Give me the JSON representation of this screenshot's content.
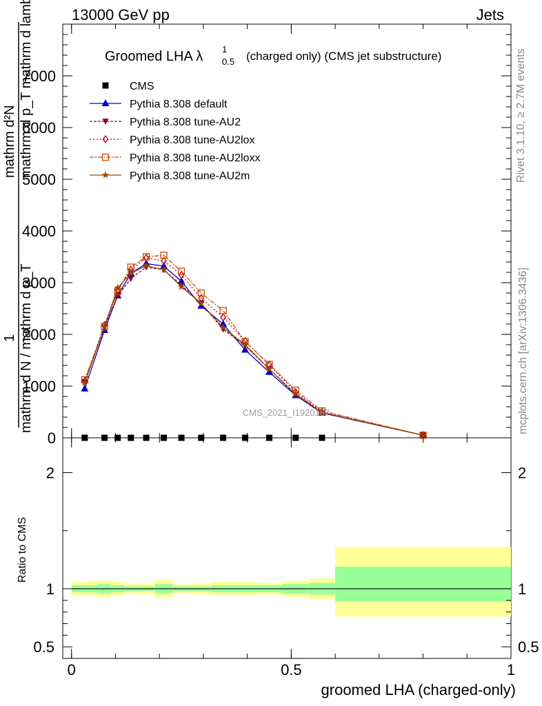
{
  "header": {
    "left": "13000 GeV pp",
    "right": "Jets"
  },
  "side": {
    "rivet": "Rivet 3.1.10, ≥ 2.7M events",
    "mcplots": "mcplots.cern.ch [arXiv:1306.3436]"
  },
  "title": {
    "main": "Groomed LHA λ",
    "sup": "1",
    "sub": "0.5",
    "rest": "(charged only) (CMS jet substructure)"
  },
  "watermark": "CMS_2021_I1920187",
  "ylabel": {
    "numerator": "mathrm d²N",
    "numerator_bottom": "mathrm d p_T mathrm d lambda",
    "prefix": "1",
    "denominator": "mathrm d N / mathrm d p_T"
  },
  "ratio_label": "Ratio to CMS",
  "xlabel": "groomed LHA (charged-only)",
  "colors": {
    "cms": "#000000",
    "default": "#0000cc",
    "au2": "#880033",
    "au2lox": "#aa0022",
    "au2loxx": "#cc4400",
    "au2m": "#994400",
    "band_inner": "#99ff99",
    "band_outer": "#ffff99"
  },
  "chart_data": [
    {
      "type": "line",
      "ylim": [
        0,
        8000
      ],
      "xlim": [
        -0.02,
        1.0
      ],
      "yticks": [
        {
          "v": 0,
          "label": "0"
        },
        {
          "v": 1000,
          "label": "1000"
        },
        {
          "v": 2000,
          "label": "2000"
        },
        {
          "v": 3000,
          "label": "3000"
        },
        {
          "v": 4000,
          "label": "4000"
        },
        {
          "v": 5000,
          "label": "5000"
        },
        {
          "v": 6000,
          "label": "6000"
        },
        {
          "v": 7000,
          "label": "7000"
        }
      ],
      "x": [
        0.03,
        0.075,
        0.105,
        0.135,
        0.17,
        0.21,
        0.25,
        0.295,
        0.345,
        0.395,
        0.45,
        0.51,
        0.57,
        0.8
      ],
      "series": [
        {
          "name": "CMS",
          "key": "cms",
          "marker": "square",
          "dash": "",
          "values": [
            0,
            0,
            0,
            0,
            0,
            0,
            0,
            0,
            0,
            0,
            0,
            0,
            0,
            null
          ]
        },
        {
          "name": "Pythia 8.308 default",
          "key": "default",
          "marker": "triangle",
          "dash": "",
          "values": [
            950,
            2080,
            2750,
            3180,
            3370,
            3320,
            3030,
            2550,
            2200,
            1700,
            1270,
            820,
            480,
            50
          ]
        },
        {
          "name": "Pythia 8.308 tune-AU2",
          "key": "au2",
          "marker": "tri-down",
          "dash": "4,2",
          "values": [
            1080,
            2130,
            2750,
            3080,
            3300,
            3250,
            2950,
            2600,
            2100,
            1780,
            1330,
            830,
            490,
            50
          ]
        },
        {
          "name": "Pythia 8.308 tune-AU2lox",
          "key": "au2lox",
          "marker": "diamond",
          "dash": "2,3",
          "values": [
            1100,
            2180,
            2850,
            3250,
            3480,
            3420,
            3150,
            2700,
            2330,
            1870,
            1410,
            880,
            500,
            50
          ]
        },
        {
          "name": "Pythia 8.308 tune-AU2loxx",
          "key": "au2loxx",
          "marker": "square-open",
          "dash": "6,2,2,2",
          "values": [
            1120,
            2150,
            2830,
            3300,
            3500,
            3530,
            3220,
            2800,
            2460,
            1860,
            1420,
            920,
            520,
            50
          ]
        },
        {
          "name": "Pythia 8.308 tune-AU2m",
          "key": "au2m",
          "marker": "star",
          "dash": "",
          "values": [
            1060,
            2150,
            2900,
            3180,
            3330,
            3250,
            2920,
            2600,
            2130,
            1800,
            1330,
            850,
            490,
            50
          ]
        }
      ]
    },
    {
      "type": "area",
      "ylim": [
        0.4,
        2.3
      ],
      "xlim": [
        -0.02,
        1.0
      ],
      "yticks": [
        {
          "v": 0.5,
          "label": "0.5"
        },
        {
          "v": 1,
          "label": "1"
        },
        {
          "v": 2,
          "label": "2"
        }
      ],
      "xticks": [
        {
          "v": 0,
          "label": "0"
        },
        {
          "v": 0.5,
          "label": "0.5"
        },
        {
          "v": 1,
          "label": "1"
        }
      ],
      "reference": 1,
      "bins": [
        {
          "x0": 0.0,
          "x1": 0.04,
          "inner": [
            0.97,
            1.03
          ],
          "outer": [
            0.94,
            1.06
          ]
        },
        {
          "x0": 0.04,
          "x1": 0.06,
          "inner": [
            0.97,
            1.03
          ],
          "outer": [
            0.94,
            1.07
          ]
        },
        {
          "x0": 0.06,
          "x1": 0.09,
          "inner": [
            0.96,
            1.04
          ],
          "outer": [
            0.93,
            1.07
          ]
        },
        {
          "x0": 0.09,
          "x1": 0.12,
          "inner": [
            0.97,
            1.03
          ],
          "outer": [
            0.94,
            1.06
          ]
        },
        {
          "x0": 0.12,
          "x1": 0.15,
          "inner": [
            0.98,
            1.02
          ],
          "outer": [
            0.96,
            1.04
          ]
        },
        {
          "x0": 0.15,
          "x1": 0.19,
          "inner": [
            0.98,
            1.02
          ],
          "outer": [
            0.95,
            1.05
          ]
        },
        {
          "x0": 0.19,
          "x1": 0.23,
          "inner": [
            0.96,
            1.04
          ],
          "outer": [
            0.92,
            1.08
          ]
        },
        {
          "x0": 0.23,
          "x1": 0.27,
          "inner": [
            0.98,
            1.02
          ],
          "outer": [
            0.96,
            1.04
          ]
        },
        {
          "x0": 0.27,
          "x1": 0.32,
          "inner": [
            0.98,
            1.02
          ],
          "outer": [
            0.95,
            1.05
          ]
        },
        {
          "x0": 0.32,
          "x1": 0.37,
          "inner": [
            0.97,
            1.03
          ],
          "outer": [
            0.94,
            1.06
          ]
        },
        {
          "x0": 0.37,
          "x1": 0.42,
          "inner": [
            0.97,
            1.03
          ],
          "outer": [
            0.94,
            1.06
          ]
        },
        {
          "x0": 0.42,
          "x1": 0.48,
          "inner": [
            0.97,
            1.03
          ],
          "outer": [
            0.95,
            1.05
          ]
        },
        {
          "x0": 0.48,
          "x1": 0.54,
          "inner": [
            0.96,
            1.04
          ],
          "outer": [
            0.93,
            1.07
          ]
        },
        {
          "x0": 0.54,
          "x1": 0.6,
          "inner": [
            0.95,
            1.05
          ],
          "outer": [
            0.91,
            1.09
          ]
        },
        {
          "x0": 0.6,
          "x1": 1.0,
          "inner": [
            0.89,
            1.19
          ],
          "outer": [
            0.76,
            1.36
          ]
        }
      ]
    }
  ]
}
